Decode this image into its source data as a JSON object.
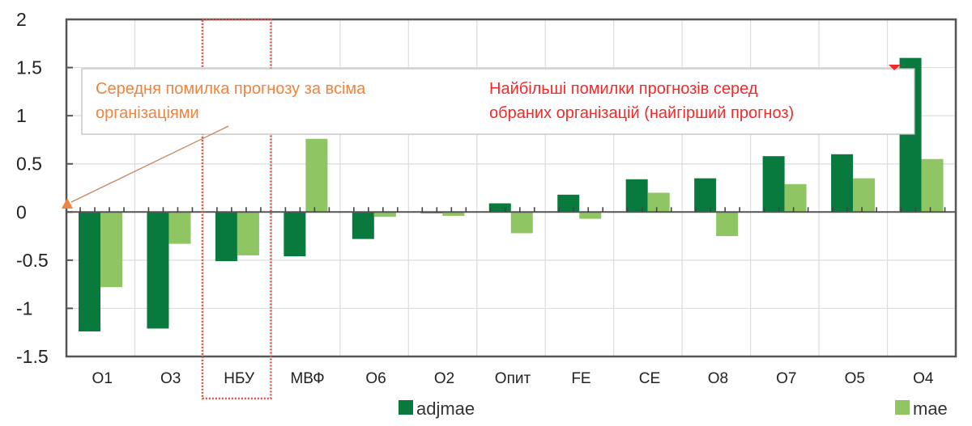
{
  "chart_data": {
    "type": "bar",
    "title": "",
    "xlabel": "",
    "ylabel": "",
    "ylim": [
      -1.5,
      2
    ],
    "yticks": [
      2,
      1.5,
      1,
      0.5,
      0,
      -0.5,
      -1,
      -1.5
    ],
    "ytick_labels": [
      "2",
      "1.5",
      "1",
      "0.5",
      "0",
      "-0.5",
      "-1",
      "-1.5"
    ],
    "grid": true,
    "categories": [
      "О1",
      "О3",
      "НБУ",
      "МВФ",
      "О6",
      "О2",
      "Опит",
      "FE",
      "CE",
      "О8",
      "О7",
      "О5",
      "О4"
    ],
    "series": [
      {
        "name": "adjmae",
        "color": "#087a3e",
        "values": [
          -1.24,
          -1.21,
          -0.51,
          -0.46,
          -0.28,
          -0.01,
          0.09,
          0.18,
          0.34,
          0.35,
          0.58,
          0.6,
          1.6
        ]
      },
      {
        "name": "mae",
        "color": "#8fc562",
        "values": [
          -0.78,
          -0.33,
          -0.45,
          0.76,
          -0.05,
          -0.04,
          -0.22,
          -0.07,
          0.2,
          -0.25,
          0.29,
          0.35,
          0.55
        ]
      }
    ],
    "legend": {
      "position": "bottom",
      "entries": [
        "adjmae",
        "mae"
      ]
    },
    "highlight_category": "НБУ",
    "annotations": [
      {
        "text_line1": "Середня помилка прогнозу за всіма",
        "text_line2": "організаціями",
        "color": "#ef8440"
      },
      {
        "text_line1": "Найбільші помилки прогнозів серед",
        "text_line2": "обраних організацій (найгірший прогноз)",
        "color": "#f42a2a"
      }
    ]
  },
  "colors": {
    "axis": "#555555",
    "grid": "#dddddd",
    "highlight_box": "#d9534f"
  }
}
